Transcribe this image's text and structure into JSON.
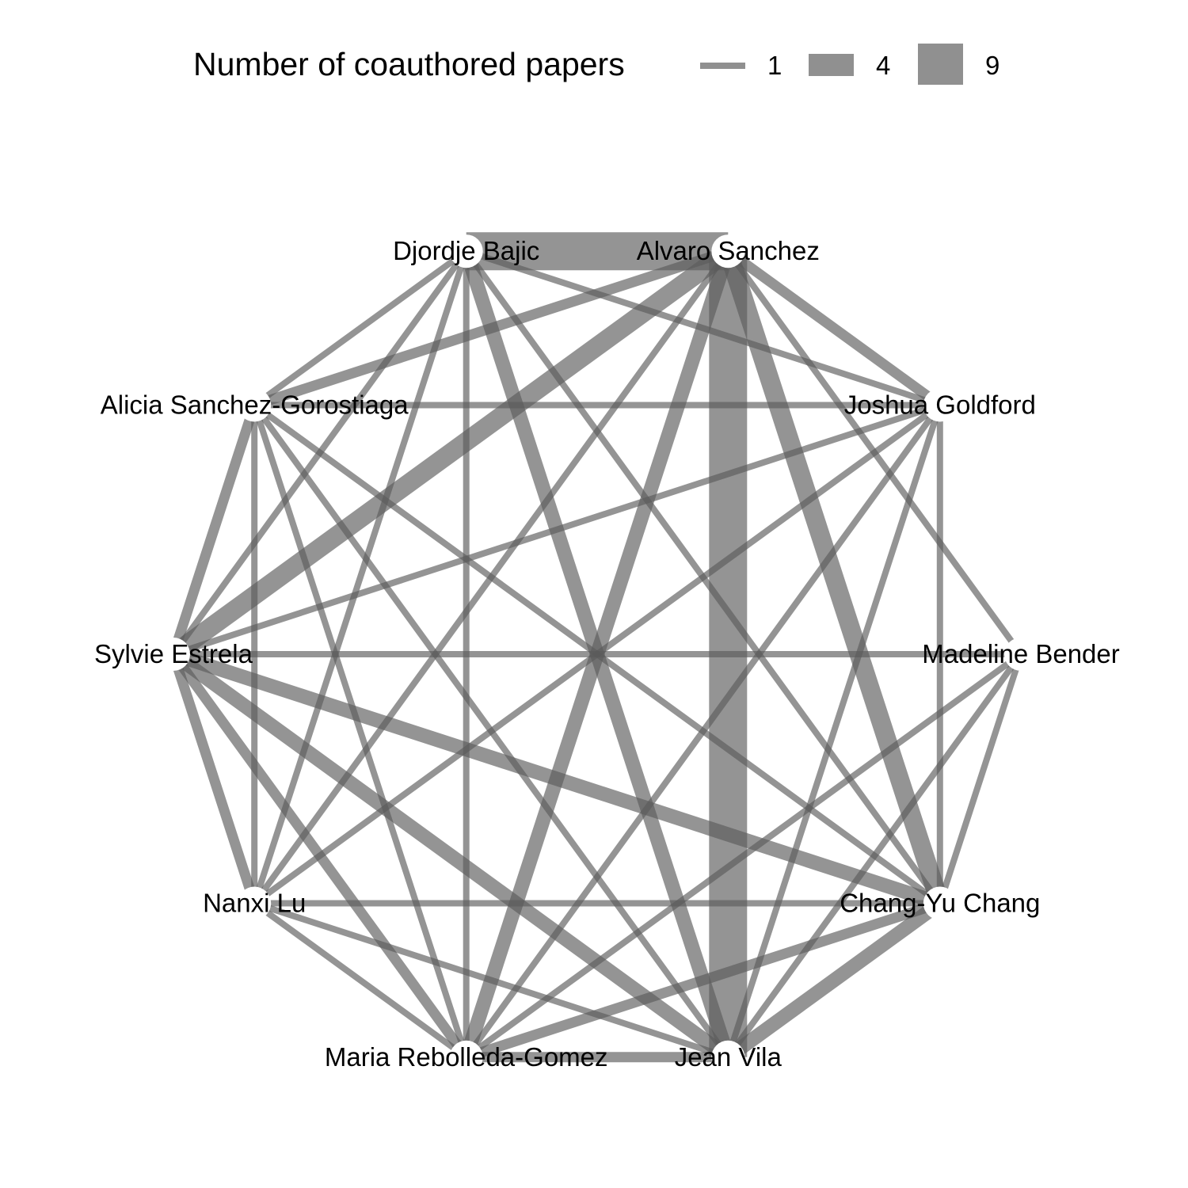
{
  "legend": {
    "title": "Number of coauthored papers",
    "items": [
      {
        "label": "1",
        "papers": 1
      },
      {
        "label": "4",
        "papers": 4
      },
      {
        "label": "9",
        "papers": 9
      }
    ]
  },
  "style": {
    "edge_color": "#5a5a5a",
    "legend_key_color": "#909090",
    "node_color": "#ffffff"
  },
  "nodes": [
    {
      "id": "alvaro",
      "label": "Alvaro Sanchez"
    },
    {
      "id": "joshua",
      "label": "Joshua Goldford"
    },
    {
      "id": "madeline",
      "label": "Madeline Bender"
    },
    {
      "id": "changyu",
      "label": "Chang-Yu Chang"
    },
    {
      "id": "jean",
      "label": "Jean Vila"
    },
    {
      "id": "maria",
      "label": "Maria Rebolleda-Gomez"
    },
    {
      "id": "nanxi",
      "label": "Nanxi Lu"
    },
    {
      "id": "sylvie",
      "label": "Sylvie Estrela"
    },
    {
      "id": "alicia",
      "label": "Alicia Sanchez-Gorostiaga"
    },
    {
      "id": "djordje",
      "label": "Djordje Bajic"
    }
  ],
  "edges": [
    {
      "source": "djordje",
      "target": "alvaro",
      "papers": 9
    },
    {
      "source": "alvaro",
      "target": "jean",
      "papers": 9
    },
    {
      "source": "alvaro",
      "target": "changyu",
      "papers": 4
    },
    {
      "source": "alvaro",
      "target": "sylvie",
      "papers": 4
    },
    {
      "source": "alvaro",
      "target": "maria",
      "papers": 3
    },
    {
      "source": "alvaro",
      "target": "alicia",
      "papers": 2
    },
    {
      "source": "alvaro",
      "target": "joshua",
      "papers": 2
    },
    {
      "source": "alvaro",
      "target": "nanxi",
      "papers": 1
    },
    {
      "source": "alvaro",
      "target": "madeline",
      "papers": 1
    },
    {
      "source": "djordje",
      "target": "jean",
      "papers": 3
    },
    {
      "source": "djordje",
      "target": "alicia",
      "papers": 1
    },
    {
      "source": "djordje",
      "target": "sylvie",
      "papers": 1
    },
    {
      "source": "djordje",
      "target": "nanxi",
      "papers": 1
    },
    {
      "source": "djordje",
      "target": "maria",
      "papers": 1
    },
    {
      "source": "djordje",
      "target": "changyu",
      "papers": 1
    },
    {
      "source": "djordje",
      "target": "joshua",
      "papers": 1
    },
    {
      "source": "sylvie",
      "target": "jean",
      "papers": 3
    },
    {
      "source": "sylvie",
      "target": "changyu",
      "papers": 3
    },
    {
      "source": "sylvie",
      "target": "maria",
      "papers": 2
    },
    {
      "source": "sylvie",
      "target": "alicia",
      "papers": 2
    },
    {
      "source": "sylvie",
      "target": "nanxi",
      "papers": 2
    },
    {
      "source": "sylvie",
      "target": "joshua",
      "papers": 1
    },
    {
      "source": "sylvie",
      "target": "madeline",
      "papers": 1
    },
    {
      "source": "changyu",
      "target": "jean",
      "papers": 3
    },
    {
      "source": "changyu",
      "target": "maria",
      "papers": 2
    },
    {
      "source": "changyu",
      "target": "joshua",
      "papers": 1
    },
    {
      "source": "changyu",
      "target": "madeline",
      "papers": 1
    },
    {
      "source": "changyu",
      "target": "nanxi",
      "papers": 1
    },
    {
      "source": "changyu",
      "target": "alicia",
      "papers": 1
    },
    {
      "source": "maria",
      "target": "jean",
      "papers": 2
    },
    {
      "source": "maria",
      "target": "nanxi",
      "papers": 1
    },
    {
      "source": "maria",
      "target": "alicia",
      "papers": 1
    },
    {
      "source": "maria",
      "target": "joshua",
      "papers": 1
    },
    {
      "source": "maria",
      "target": "madeline",
      "papers": 1
    },
    {
      "source": "alicia",
      "target": "joshua",
      "papers": 1
    },
    {
      "source": "alicia",
      "target": "nanxi",
      "papers": 1
    },
    {
      "source": "alicia",
      "target": "jean",
      "papers": 1
    },
    {
      "source": "nanxi",
      "target": "jean",
      "papers": 1
    },
    {
      "source": "nanxi",
      "target": "joshua",
      "papers": 1
    },
    {
      "source": "jean",
      "target": "joshua",
      "papers": 1
    },
    {
      "source": "jean",
      "target": "madeline",
      "papers": 1
    }
  ]
}
